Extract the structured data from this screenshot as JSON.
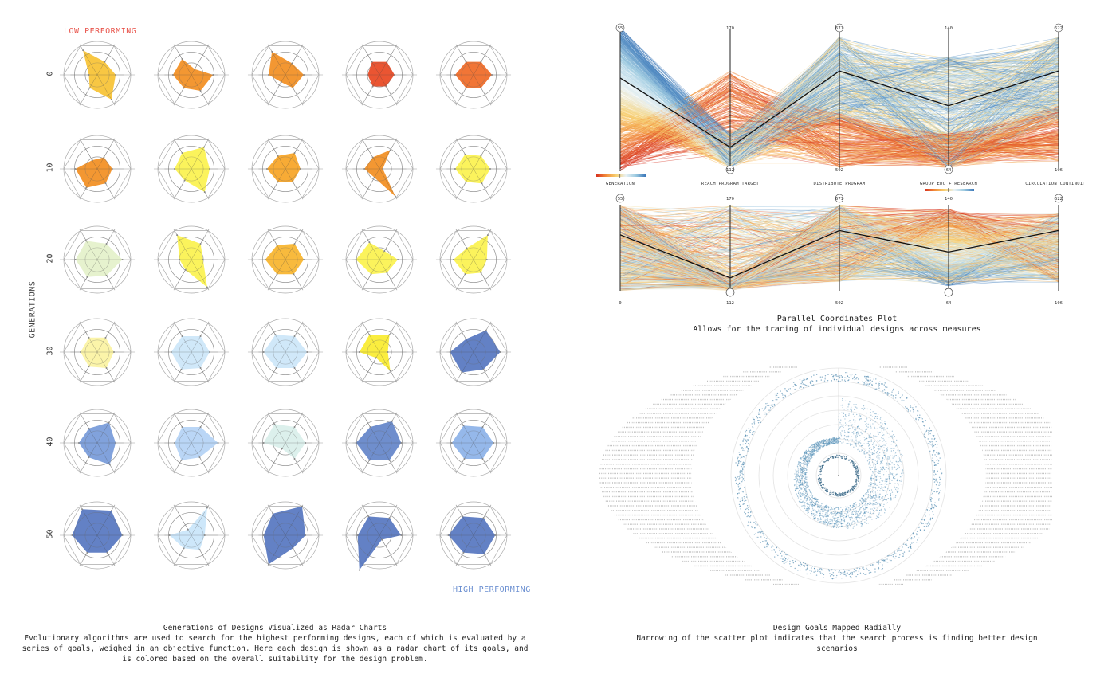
{
  "radar_panel": {
    "low_label": "LOW PERFORMING",
    "high_label": "HIGH PERFORMING",
    "y_axis_label": "GENERATIONS",
    "caption_title": "Generations of Designs Visualized as Radar Charts",
    "caption_body": "Evolutionary algorithms are used to search for the highest performing designs, each of which is evaluated by a series of goals, weighed in an objective function. Here each design is shown as a radar chart of its goals, and is colored based on the overall suitability for the design problem."
  },
  "pcp_panel": {
    "caption_title": "Parallel Coordinates Plot",
    "caption_body": "Allows for the tracing of individual designs across measures"
  },
  "radial_panel": {
    "caption_title": "Design Goals Mapped Radially",
    "caption_body": "Narrowing of the scatter plot indicates that the search process is finding better design scenarios"
  },
  "chart_data": [
    {
      "type": "radar",
      "title": "Generations of Designs Visualized as Radar Charts",
      "ylabel": "GENERATIONS",
      "row_labels": [
        "0",
        "10",
        "20",
        "30",
        "40",
        "50"
      ],
      "axes_count": 6,
      "scale_max": 1.0,
      "designs": [
        [
          {
            "color": "#f7c12f",
            "values": [
              0.25,
              0.85,
              0.45,
              0.55,
              0.85,
              0.45
            ]
          },
          {
            "color": "#f28c1c",
            "values": [
              0.55,
              0.55,
              0.2,
              0.65,
              0.55,
              0.45
            ]
          },
          {
            "color": "#f28c1c",
            "values": [
              0.5,
              0.8,
              0.4,
              0.55,
              0.45,
              0.25
            ]
          },
          {
            "color": "#e8431c",
            "values": [
              0.35,
              0.45,
              0.45,
              0.45,
              0.4,
              0.4
            ]
          },
          {
            "color": "#ef6620",
            "values": [
              0.55,
              0.45,
              0.45,
              0.55,
              0.45,
              0.45
            ]
          }
        ],
        [
          {
            "color": "#f28c1c",
            "values": [
              0.65,
              0.3,
              0.4,
              0.45,
              0.5,
              0.65
            ]
          },
          {
            "color": "#fbf24a",
            "values": [
              0.5,
              0.55,
              0.75,
              0.55,
              0.8,
              0.4
            ]
          },
          {
            "color": "#f7a21f",
            "values": [
              0.55,
              0.45,
              0.55,
              0.45,
              0.45,
              0.45
            ]
          },
          {
            "color": "#f28c1c",
            "values": [
              0.45,
              0.4,
              0.65,
              0.1,
              0.95,
              0.3
            ]
          },
          {
            "color": "#fbf24a",
            "values": [
              0.55,
              0.5,
              0.45,
              0.5,
              0.5,
              0.45
            ]
          }
        ],
        [
          {
            "color": "#e3f1c9",
            "values": [
              0.65,
              0.65,
              0.55,
              0.75,
              0.55,
              0.6
            ]
          },
          {
            "color": "#fbf24a",
            "values": [
              0.35,
              0.85,
              0.55,
              0.35,
              0.95,
              0.35
            ]
          },
          {
            "color": "#f7b228",
            "values": [
              0.6,
              0.5,
              0.55,
              0.55,
              0.5,
              0.5
            ]
          },
          {
            "color": "#fbf24a",
            "values": [
              0.7,
              0.6,
              0.3,
              0.55,
              0.45,
              0.5
            ]
          },
          {
            "color": "#fbf24a",
            "values": [
              0.6,
              0.4,
              0.85,
              0.4,
              0.45,
              0.5
            ]
          }
        ],
        [
          {
            "color": "#fbf3a0",
            "values": [
              0.5,
              0.5,
              0.5,
              0.5,
              0.55,
              0.5
            ]
          },
          {
            "color": "#cbe6f8",
            "values": [
              0.6,
              0.55,
              0.55,
              0.55,
              0.55,
              0.6
            ]
          },
          {
            "color": "#cbe6f8",
            "values": [
              0.65,
              0.6,
              0.55,
              0.65,
              0.55,
              0.55
            ]
          },
          {
            "color": "#f9eb2a",
            "values": [
              0.6,
              0.6,
              0.6,
              0.25,
              0.65,
              0.2
            ]
          },
          {
            "color": "#5273bf",
            "values": [
              0.7,
              0.45,
              0.75,
              0.8,
              0.6,
              0.7
            ]
          }
        ],
        [
          {
            "color": "#7398d8",
            "values": [
              0.55,
              0.5,
              0.7,
              0.55,
              0.75,
              0.5
            ]
          },
          {
            "color": "#b3d2f5",
            "values": [
              0.5,
              0.55,
              0.55,
              0.8,
              0.5,
              0.6
            ]
          },
          {
            "color": "#d8eeea",
            "values": [
              0.65,
              0.65,
              0.55,
              0.6,
              0.55,
              0.2
            ]
          },
          {
            "color": "#5f82c8",
            "values": [
              0.7,
              0.55,
              0.75,
              0.65,
              0.6,
              0.6
            ]
          },
          {
            "color": "#8ab0e8",
            "values": [
              0.65,
              0.6,
              0.55,
              0.6,
              0.55,
              0.55
            ]
          }
        ],
        [
          {
            "color": "#5273bf",
            "values": [
              0.75,
              0.9,
              0.85,
              0.75,
              0.6,
              0.6
            ]
          },
          {
            "color": "#c8e4fa",
            "values": [
              0.65,
              0.2,
              0.95,
              0.4,
              0.5,
              0.45
            ]
          },
          {
            "color": "#5273bf",
            "values": [
              0.65,
              0.75,
              1.0,
              0.6,
              0.45,
              1.0
            ]
          },
          {
            "color": "#5273bf",
            "values": [
              0.65,
              0.65,
              0.6,
              0.65,
              0.15,
              1.2
            ]
          },
          {
            "color": "#5273bf",
            "values": [
              0.75,
              0.65,
              0.6,
              0.65,
              0.65,
              0.6
            ]
          }
        ]
      ]
    },
    {
      "type": "parallel_coordinates",
      "title": "Parallel Coordinates Plot",
      "axes": [
        {
          "name": "GENERATION",
          "min": 0,
          "max": 55
        },
        {
          "name": "REACH PROGRAM TARGET",
          "min": 112,
          "max": 170
        },
        {
          "name": "DISTRIBUTE PROGRAM",
          "min": 502,
          "max": 671
        },
        {
          "name": "GROUP EDU + RESEARCH",
          "min": 64,
          "max": 140
        },
        {
          "name": "CIRCULATION CONTINUITY",
          "min": 106,
          "max": 622
        }
      ],
      "top_plot_color_by": "GENERATION",
      "bottom_plot_color_by": "GROUP EDU + RESEARCH",
      "colormap": [
        "#d7301f",
        "#f28c3a",
        "#f7d070",
        "#e9f2f5",
        "#9ccae0",
        "#3b77b9"
      ],
      "highlighted_line": [
        0.35,
        0.85,
        0.3,
        0.55,
        0.3
      ]
    },
    {
      "type": "scatter",
      "subtype": "radial",
      "title": "Design Goals Mapped Radially",
      "point_color": "#3f7fa8"
    }
  ]
}
